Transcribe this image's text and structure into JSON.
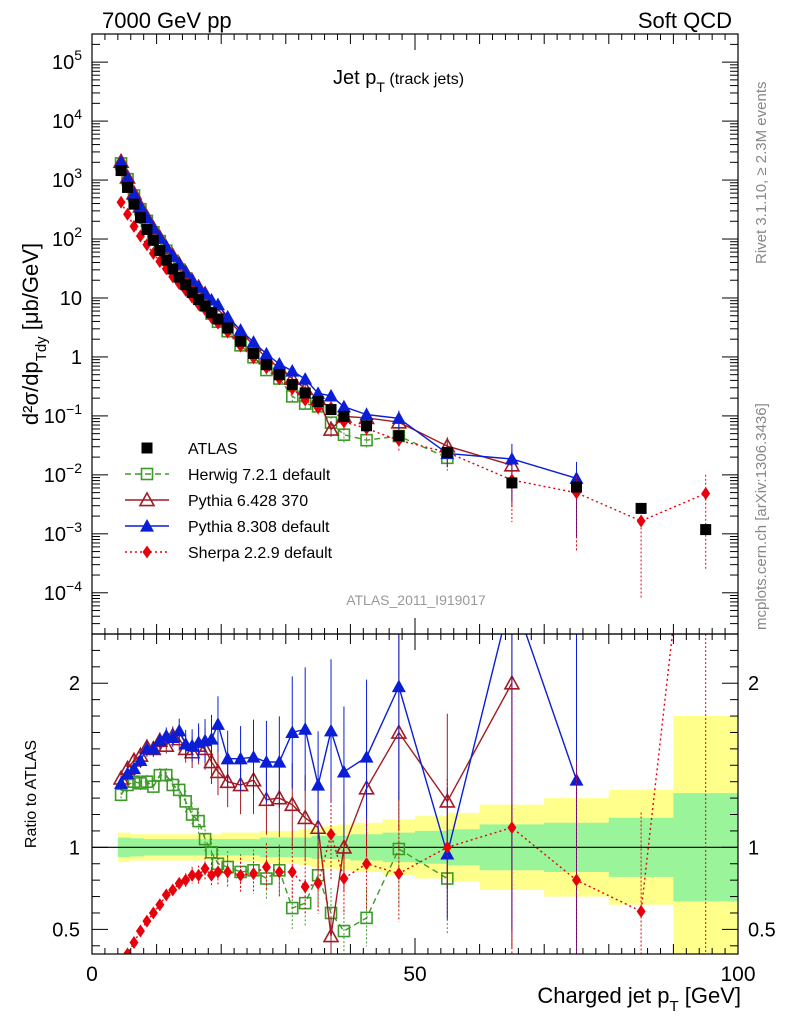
{
  "header": {
    "left": "7000 GeV pp",
    "right": "Soft QCD"
  },
  "side_text": {
    "rivet": "Rivet 3.1.10, ≥ 2.3M events",
    "mcplots": "mcplots.cern.ch [arXiv:1306.3436]"
  },
  "chart_data": {
    "type": "scatter",
    "title": {
      "main": "Jet p",
      "sub": "T",
      "suffix": " (track jets)"
    },
    "analysis_id": "ATLAS_2011_I919017",
    "xlabel": "Charged jet p",
    "xlabel_sub": "T",
    "xlabel_unit": " [GeV]",
    "ylabel": "d²σ/dp",
    "ylabel_sub": "Tdy",
    "ylabel_unit": " [μb/GeV]",
    "ratio_ylabel": "Ratio to ATLAS",
    "xlim": [
      0,
      100
    ],
    "ylim": [
      2e-05,
      300000
    ],
    "y_scale": "log",
    "ratio_ylim": [
      0.35,
      2.3
    ],
    "x_ticks": [
      0,
      50,
      100
    ],
    "y_ticks": [
      {
        "v": 100000,
        "b": "10",
        "e": "5"
      },
      {
        "v": 10000,
        "b": "10",
        "e": "4"
      },
      {
        "v": 1000,
        "b": "10",
        "e": "3"
      },
      {
        "v": 100,
        "b": "10",
        "e": "2"
      },
      {
        "v": 10,
        "b": "10",
        "e": ""
      },
      {
        "v": 1,
        "b": "1",
        "e": ""
      },
      {
        "v": 0.1,
        "b": "10",
        "e": "−1"
      },
      {
        "v": 0.01,
        "b": "10",
        "e": "−2"
      },
      {
        "v": 0.001,
        "b": "10",
        "e": "−3"
      },
      {
        "v": 0.0001,
        "b": "10",
        "e": "−4"
      }
    ],
    "ratio_ticks": [
      {
        "v": 0.5,
        "label": "0.5"
      },
      {
        "v": 1,
        "label": "1"
      },
      {
        "v": 2,
        "label": "2"
      }
    ],
    "legend_position": "bottom-left",
    "series": [
      {
        "name": "ATLAS",
        "marker": "square",
        "color": "#000000",
        "x": [
          4.5,
          5.5,
          6.5,
          7.5,
          8.5,
          9.5,
          10.5,
          11.5,
          12.5,
          13.5,
          14.5,
          15.5,
          16.5,
          17.5,
          18.5,
          19.5,
          21,
          23,
          25,
          27,
          29,
          31,
          33,
          35,
          37,
          39,
          42.5,
          47.5,
          55,
          65,
          75,
          85,
          95
        ],
        "y": [
          1450,
          750,
          390,
          230,
          145,
          95,
          64,
          44,
          31,
          22.5,
          16.8,
          12.4,
          9.4,
          7.3,
          5.6,
          4.4,
          3.1,
          1.85,
          1.15,
          0.74,
          0.5,
          0.34,
          0.245,
          0.175,
          0.128,
          0.098,
          0.068,
          0.046,
          0.024,
          0.0073,
          0.0062,
          0.0027,
          0.00118
        ]
      },
      {
        "name": "Herwig 7.2.1 default",
        "marker": "open-square",
        "line": "dashed",
        "color": "#3e9a28",
        "x": [
          4.5,
          5.5,
          6.5,
          7.5,
          8.5,
          9.5,
          10.5,
          11.5,
          12.5,
          13.5,
          14.5,
          15.5,
          16.5,
          17.5,
          18.5,
          19.5,
          21,
          23,
          25,
          27,
          29,
          31,
          33,
          35,
          37,
          39,
          42.5,
          47.5,
          55
        ],
        "ratio": [
          1.32,
          1.38,
          1.4,
          1.39,
          1.4,
          1.37,
          1.44,
          1.44,
          1.38,
          1.35,
          1.28,
          1.2,
          1.16,
          1.05,
          0.97,
          0.9,
          0.88,
          0.85,
          0.86,
          0.81,
          0.86,
          0.63,
          0.66,
          0.83,
          0.6,
          0.49,
          0.57,
          0.99,
          0.81
        ]
      },
      {
        "name": "Pythia 6.428 370",
        "marker": "open-triangle",
        "line": "solid",
        "color": "#a01c24",
        "x": [
          4.5,
          5.5,
          6.5,
          7.5,
          8.5,
          9.5,
          10.5,
          11.5,
          12.5,
          13.5,
          14.5,
          15.5,
          16.5,
          17.5,
          18.5,
          19.5,
          21,
          23,
          25,
          27,
          29,
          31,
          33,
          35,
          37,
          39,
          42.5,
          47.5,
          55,
          65
        ],
        "ratio": [
          1.42,
          1.48,
          1.53,
          1.56,
          1.61,
          1.6,
          1.65,
          1.62,
          1.68,
          1.66,
          1.6,
          1.58,
          1.62,
          1.6,
          1.52,
          1.46,
          1.4,
          1.38,
          1.41,
          1.29,
          1.3,
          1.26,
          1.18,
          1.12,
          0.46,
          1.0,
          1.36,
          1.7,
          1.28,
          2.0
        ]
      },
      {
        "name": "Pythia 8.308 default",
        "marker": "triangle",
        "line": "solid",
        "color": "#0a1ed6",
        "x": [
          4.5,
          5.5,
          6.5,
          7.5,
          8.5,
          9.5,
          10.5,
          11.5,
          12.5,
          13.5,
          14.5,
          15.5,
          16.5,
          17.5,
          18.5,
          19.5,
          21,
          23,
          25,
          27,
          29,
          31,
          33,
          35,
          37,
          39,
          42.5,
          47.5,
          55,
          65,
          75
        ],
        "ratio": [
          1.39,
          1.45,
          1.48,
          1.53,
          1.6,
          1.6,
          1.65,
          1.68,
          1.67,
          1.71,
          1.63,
          1.62,
          1.64,
          1.65,
          1.66,
          1.75,
          1.54,
          1.54,
          1.55,
          1.52,
          1.52,
          1.7,
          1.72,
          1.38,
          1.71,
          1.46,
          1.55,
          1.98,
          0.96,
          2.55,
          1.41
        ]
      },
      {
        "name": "Sherpa 2.2.9 default",
        "marker": "diamond",
        "line": "dotted",
        "color": "#e8000b",
        "x": [
          4.5,
          5.5,
          6.5,
          7.5,
          8.5,
          9.5,
          10.5,
          11.5,
          12.5,
          13.5,
          14.5,
          15.5,
          16.5,
          17.5,
          18.5,
          19.5,
          21,
          23,
          25,
          27,
          29,
          31,
          33,
          35,
          37,
          39,
          42.5,
          47.5,
          55,
          65,
          75,
          85,
          95
        ],
        "ratio": [
          0.29,
          0.35,
          0.42,
          0.49,
          0.55,
          0.6,
          0.65,
          0.71,
          0.74,
          0.78,
          0.8,
          0.83,
          0.83,
          0.87,
          0.83,
          0.85,
          0.85,
          0.83,
          0.84,
          0.88,
          0.85,
          0.85,
          0.76,
          0.78,
          1.08,
          0.81,
          0.9,
          0.84,
          1.0,
          1.12,
          0.8,
          0.61,
          4.1
        ]
      }
    ],
    "band_x": [
      4,
      6,
      8,
      10,
      12,
      14,
      16,
      18,
      20,
      22,
      24,
      26,
      28,
      30,
      32,
      34,
      36,
      38,
      40,
      45,
      50,
      55,
      60,
      70,
      80,
      90,
      100
    ],
    "band_green": [
      0.06,
      0.055,
      0.05,
      0.05,
      0.05,
      0.05,
      0.05,
      0.05,
      0.05,
      0.05,
      0.05,
      0.06,
      0.06,
      0.06,
      0.06,
      0.07,
      0.07,
      0.07,
      0.08,
      0.09,
      0.1,
      0.11,
      0.14,
      0.15,
      0.18,
      0.33,
      0.33
    ],
    "band_yellow": [
      0.09,
      0.08,
      0.08,
      0.08,
      0.08,
      0.08,
      0.08,
      0.08,
      0.09,
      0.09,
      0.09,
      0.1,
      0.1,
      0.1,
      0.11,
      0.12,
      0.13,
      0.14,
      0.15,
      0.17,
      0.19,
      0.21,
      0.26,
      0.3,
      0.35,
      0.8,
      0.8
    ]
  }
}
